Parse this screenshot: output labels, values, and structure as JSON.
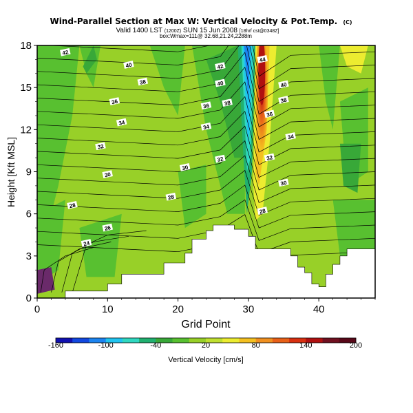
{
  "chart_data": {
    "type": "heatmap",
    "title": "Wind-Parallel Section at Max W: Vertical Velocity & Pot.Temp.",
    "title_mark": "(C)",
    "subtitle_line1": "Valid 1400 LST",
    "subtitle_small1": "(1200Z)",
    "subtitle_line1b": "SUN 15 Jun 2008",
    "subtitle_small2": "[18hrf cst@0348Z]",
    "subtitle_line2": "box:Wmax=111@ 32.68,21.24,2288m",
    "xlabel": "Grid Point",
    "ylabel": "Height [Kft MSL]",
    "xlim": [
      0,
      48
    ],
    "ylim": [
      0,
      18
    ],
    "x_ticks": [
      0,
      10,
      20,
      30,
      40
    ],
    "x_tick_labels": [
      "0",
      "10",
      "20",
      "30",
      "40"
    ],
    "y_ticks": [
      0,
      3,
      6,
      9,
      12,
      15,
      18
    ],
    "y_tick_labels": [
      "0",
      "3",
      "6",
      "9",
      "12",
      "15",
      "18"
    ],
    "colorbar": {
      "label": "Vertical Velocity [cm/s]",
      "min": -160,
      "max": 200,
      "step": 20,
      "tick_labels": [
        "-160",
        "-100",
        "-40",
        "20",
        "80",
        "140",
        "200"
      ],
      "colors": [
        "#1010b0",
        "#1248e0",
        "#1c84f0",
        "#20c4f0",
        "#30d8c0",
        "#20b070",
        "#38a838",
        "#58c030",
        "#98d028",
        "#c0e030",
        "#ecec30",
        "#f4c020",
        "#f09020",
        "#e86018",
        "#d83010",
        "#b01010",
        "#701020",
        "#580818"
      ]
    },
    "series": [
      {
        "name": "Potential temperature contours (°C)",
        "labels": [
          {
            "text": "42",
            "x": 4,
            "y": 17.5
          },
          {
            "text": "40",
            "x": 13,
            "y": 16.6
          },
          {
            "text": "38",
            "x": 15,
            "y": 15.4
          },
          {
            "text": "36",
            "x": 11,
            "y": 14.0
          },
          {
            "text": "34",
            "x": 12,
            "y": 12.5
          },
          {
            "text": "32",
            "x": 9,
            "y": 10.8
          },
          {
            "text": "30",
            "x": 10,
            "y": 8.8
          },
          {
            "text": "28",
            "x": 5,
            "y": 6.6
          },
          {
            "text": "26",
            "x": 10,
            "y": 5.0
          },
          {
            "text": "24",
            "x": 7,
            "y": 3.9
          },
          {
            "text": "30",
            "x": 21,
            "y": 9.3
          },
          {
            "text": "28",
            "x": 19,
            "y": 7.2
          },
          {
            "text": "42",
            "x": 26,
            "y": 16.5
          },
          {
            "text": "40",
            "x": 26,
            "y": 15.3
          },
          {
            "text": "38",
            "x": 27,
            "y": 13.9
          },
          {
            "text": "36",
            "x": 24,
            "y": 13.7
          },
          {
            "text": "34",
            "x": 24,
            "y": 12.2
          },
          {
            "text": "32",
            "x": 26,
            "y": 9.9
          },
          {
            "text": "44",
            "x": 32,
            "y": 17.0
          },
          {
            "text": "36",
            "x": 33,
            "y": 13.1
          },
          {
            "text": "32",
            "x": 33,
            "y": 10.0
          },
          {
            "text": "28",
            "x": 32,
            "y": 6.2
          },
          {
            "text": "40",
            "x": 35,
            "y": 15.2
          },
          {
            "text": "38",
            "x": 35,
            "y": 14.1
          },
          {
            "text": "34",
            "x": 36,
            "y": 11.5
          },
          {
            "text": "30",
            "x": 35,
            "y": 8.2
          }
        ]
      }
    ]
  }
}
